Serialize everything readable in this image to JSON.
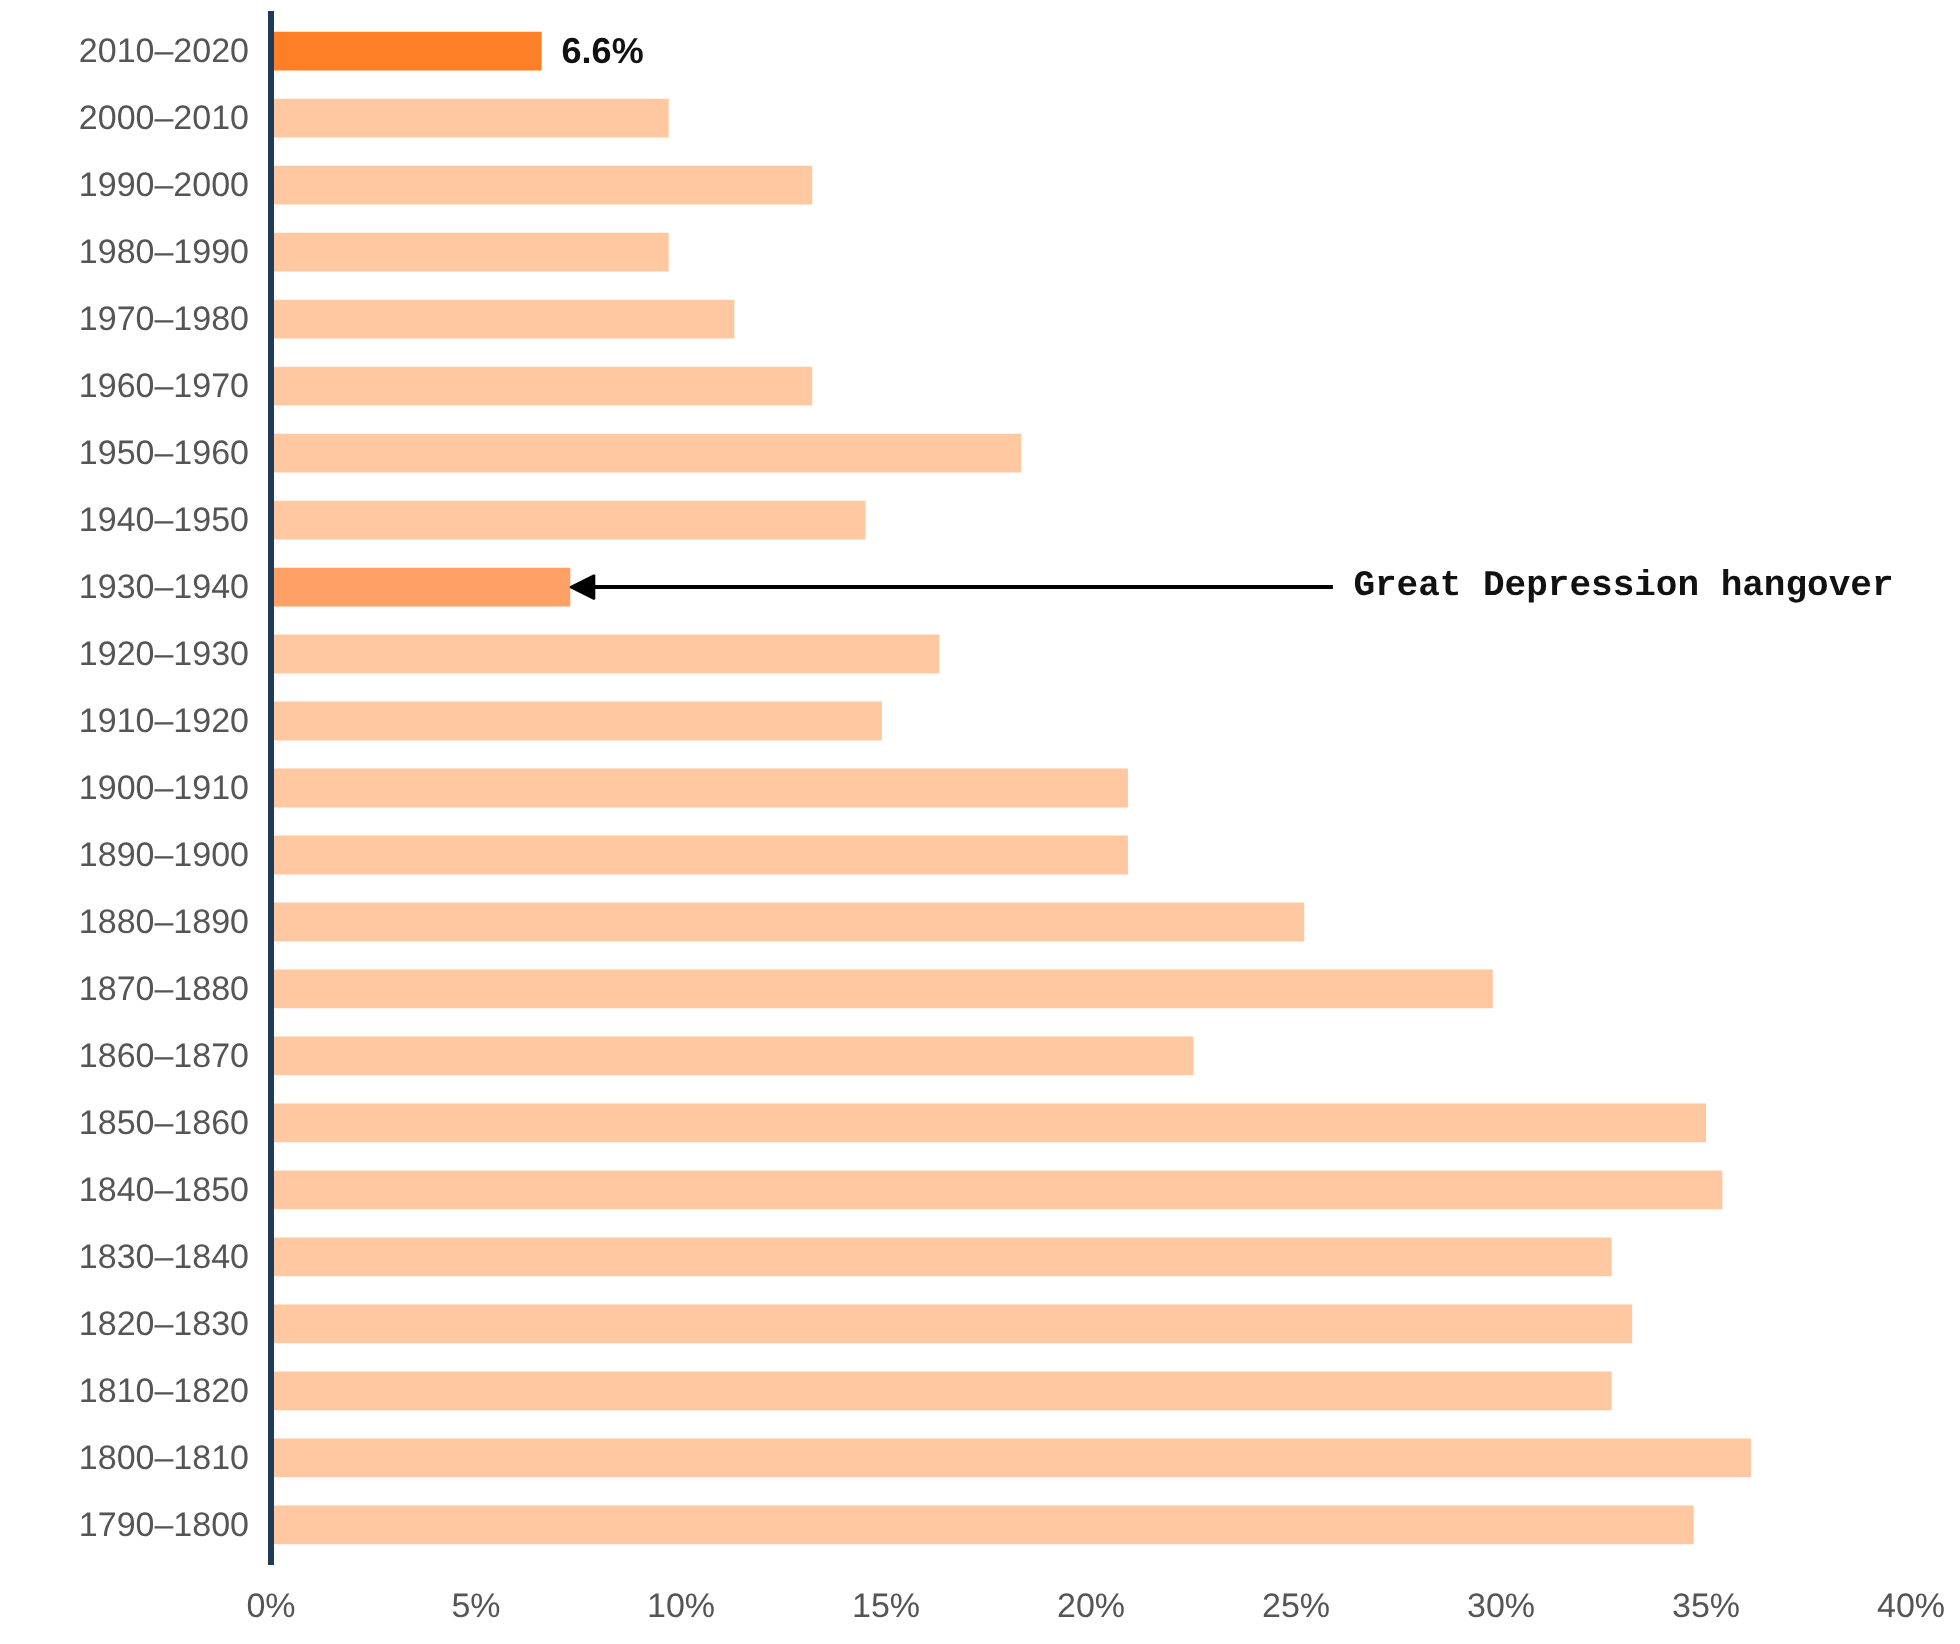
{
  "chart_data": {
    "type": "bar",
    "orientation": "horizontal",
    "categories": [
      "2010–2020",
      "2000–2010",
      "1990–2000",
      "1980–1990",
      "1970–1980",
      "1960–1970",
      "1950–1960",
      "1940–1950",
      "1930–1940",
      "1920–1930",
      "1910–1920",
      "1900–1910",
      "1890–1900",
      "1880–1890",
      "1870–1880",
      "1860–1870",
      "1850–1860",
      "1840–1850",
      "1830–1840",
      "1820–1830",
      "1810–1820",
      "1800–1810",
      "1790–1800"
    ],
    "values": [
      6.6,
      9.7,
      13.2,
      9.7,
      11.3,
      13.2,
      18.3,
      14.5,
      7.3,
      16.3,
      14.9,
      20.9,
      20.9,
      25.2,
      29.8,
      22.5,
      35.0,
      35.4,
      32.7,
      33.2,
      32.7,
      36.1,
      34.7
    ],
    "colors": [
      "#ff7f27",
      "#ffc8a0",
      "#ffc8a0",
      "#ffc8a0",
      "#ffc8a0",
      "#ffc8a0",
      "#ffc8a0",
      "#ffc8a0",
      "#ffa066",
      "#ffc8a0",
      "#ffc8a0",
      "#ffc8a0",
      "#ffc8a0",
      "#ffc8a0",
      "#ffc8a0",
      "#ffc8a0",
      "#ffc8a0",
      "#ffc8a0",
      "#ffc8a0",
      "#ffc8a0",
      "#ffc8a0",
      "#ffc8a0",
      "#ffc8a0"
    ],
    "value_labels": [
      "6.6%",
      null,
      null,
      null,
      null,
      null,
      null,
      null,
      null,
      null,
      null,
      null,
      null,
      null,
      null,
      null,
      null,
      null,
      null,
      null,
      null,
      null,
      null
    ],
    "xlim": [
      0,
      40
    ],
    "xticks": [
      {
        "value": 0,
        "label": "0%"
      },
      {
        "value": 5,
        "label": "5%"
      },
      {
        "value": 10,
        "label": "10%"
      },
      {
        "value": 15,
        "label": "15%"
      },
      {
        "value": 20,
        "label": "20%"
      },
      {
        "value": 25,
        "label": "25%"
      },
      {
        "value": 30,
        "label": "30%"
      },
      {
        "value": 35,
        "label": "35%"
      },
      {
        "value": 40,
        "label": "40%"
      }
    ],
    "grid": false,
    "annotations": [
      {
        "text": "Great Depression hangover",
        "x": 7.3,
        "y": "1930–1940"
      }
    ]
  }
}
